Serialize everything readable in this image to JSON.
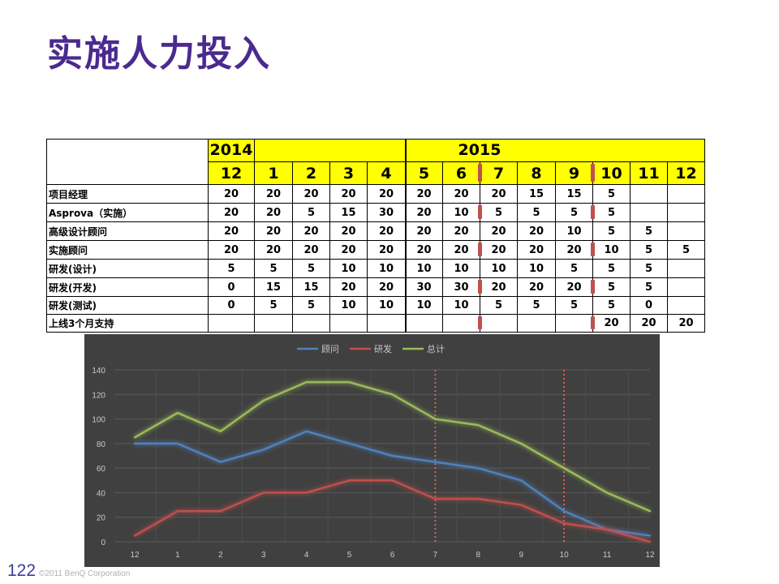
{
  "slide": {
    "title": "实施人力投入",
    "page_number": "122",
    "copyright": "©2011 BenQ Corporation"
  },
  "table": {
    "years": [
      "2014",
      "2015"
    ],
    "months": [
      "12",
      "1",
      "2",
      "3",
      "4",
      "5",
      "6",
      "7",
      "8",
      "9",
      "10",
      "11",
      "12"
    ],
    "rows": [
      {
        "label": "项目经理",
        "values": [
          "20",
          "20",
          "20",
          "20",
          "20",
          "20",
          "20",
          "20",
          "15",
          "15",
          "5",
          "",
          ""
        ]
      },
      {
        "label": "Asprova（实施）",
        "values": [
          "20",
          "20",
          "5",
          "15",
          "30",
          "20",
          "10",
          "5",
          "5",
          "5",
          "5",
          "",
          ""
        ]
      },
      {
        "label": "高级设计顾问",
        "values": [
          "20",
          "20",
          "20",
          "20",
          "20",
          "20",
          "20",
          "20",
          "20",
          "10",
          "5",
          "5",
          ""
        ]
      },
      {
        "label": "实施顾问",
        "values": [
          "20",
          "20",
          "20",
          "20",
          "20",
          "20",
          "20",
          "20",
          "20",
          "20",
          "10",
          "5",
          "5"
        ]
      },
      {
        "label": "研发(设计)",
        "values": [
          "5",
          "5",
          "5",
          "10",
          "10",
          "10",
          "10",
          "10",
          "10",
          "5",
          "5",
          "5",
          ""
        ]
      },
      {
        "label": "研发(开发)",
        "values": [
          "0",
          "15",
          "15",
          "20",
          "20",
          "30",
          "30",
          "20",
          "20",
          "20",
          "5",
          "5",
          ""
        ]
      },
      {
        "label": "研发(测试)",
        "values": [
          "0",
          "5",
          "5",
          "10",
          "10",
          "10",
          "10",
          "5",
          "5",
          "5",
          "5",
          "0",
          ""
        ]
      },
      {
        "label": "上线3个月支持",
        "values": [
          "",
          "",
          "",
          "",
          "",
          "",
          "",
          "",
          "",
          "",
          "20",
          "20",
          "20"
        ]
      }
    ],
    "marker_color": "#c0504d"
  },
  "chart_data": {
    "type": "line",
    "categories": [
      "12",
      "1",
      "2",
      "3",
      "4",
      "5",
      "6",
      "7",
      "8",
      "9",
      "10",
      "11",
      "12"
    ],
    "series": [
      {
        "name": "顾问",
        "color": "#4f81bd",
        "values": [
          80,
          80,
          65,
          75,
          90,
          80,
          70,
          65,
          60,
          50,
          25,
          10,
          5
        ]
      },
      {
        "name": "研发",
        "color": "#c0504d",
        "values": [
          5,
          25,
          25,
          40,
          40,
          50,
          50,
          35,
          35,
          30,
          15,
          10,
          0
        ]
      },
      {
        "name": "总计",
        "color": "#9bbb59",
        "values": [
          85,
          105,
          90,
          115,
          130,
          130,
          120,
          100,
          95,
          80,
          60,
          40,
          25
        ]
      }
    ],
    "yticks": [
      0,
      20,
      40,
      60,
      80,
      100,
      120,
      140
    ],
    "ylim": [
      0,
      140
    ],
    "vlines_at": [
      "7",
      "10"
    ],
    "vline_color": "#ff6b6b",
    "legend_position": "top",
    "grid": true,
    "background": "#404040"
  }
}
